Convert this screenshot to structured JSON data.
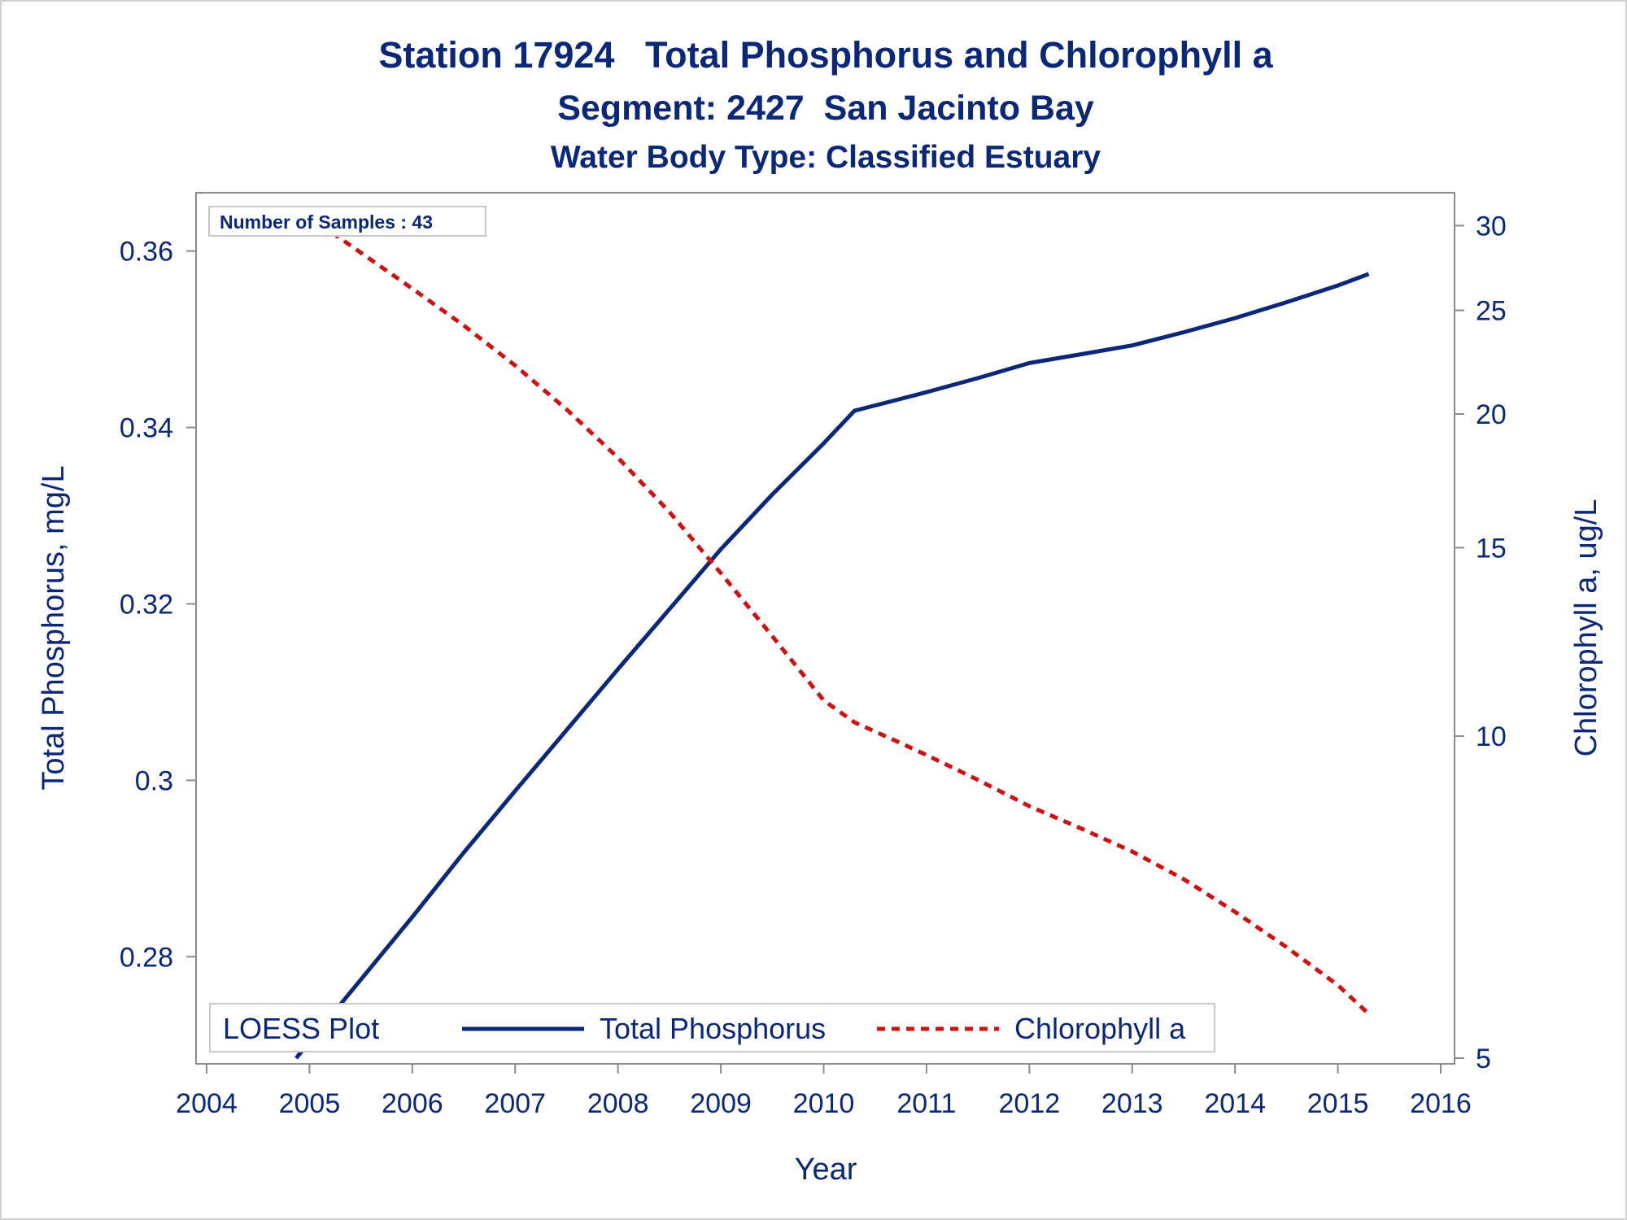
{
  "chart_data": {
    "type": "line",
    "title": "Station 17924   Total Phosphorus and Chlorophyll a",
    "subtitle": "Segment: 2427  San Jacinto Bay",
    "subtitle2": "Water Body Type: Classified Estuary",
    "xlabel": "Year",
    "ylabel_left": "Total Phosphorus, mg/L",
    "ylabel_right": "Chlorophyll a, ug/L",
    "x_ticks": [
      "2004",
      "2005",
      "2006",
      "2007",
      "2008",
      "2009",
      "2010",
      "2011",
      "2012",
      "2013",
      "2014",
      "2015",
      "2016"
    ],
    "xlim": [
      2004,
      2016
    ],
    "y_left_ticks": [
      "0.28",
      "0.3",
      "0.32",
      "0.34",
      "0.36"
    ],
    "y_left_lim": [
      0.2685,
      0.3632
    ],
    "y_right_ticks": [
      "5",
      "10",
      "15",
      "20",
      "25",
      "30"
    ],
    "y_right_scale": "log",
    "y_right_lim": [
      5.0,
      31.2
    ],
    "annotation": "Number of Samples : 43",
    "legend_title": "LOESS Plot",
    "legend_position": "bottom-inside",
    "grid": false,
    "series": [
      {
        "name": "Total Phosphorus",
        "axis": "left",
        "style": "solid",
        "color": "#0b2878",
        "x": [
          2004.87,
          2005.4,
          2006.0,
          2006.5,
          2007.0,
          2007.5,
          2008.0,
          2008.5,
          2009.0,
          2009.5,
          2010.0,
          2010.3,
          2010.7,
          2011.0,
          2011.5,
          2012.0,
          2012.5,
          2013.0,
          2013.5,
          2014.0,
          2014.5,
          2015.0,
          2015.3
        ],
        "y": [
          0.2685,
          0.276,
          0.2845,
          0.2918,
          0.2988,
          0.3057,
          0.3126,
          0.3194,
          0.3262,
          0.3324,
          0.3382,
          0.3419,
          0.3431,
          0.344,
          0.3456,
          0.3473,
          0.3483,
          0.3493,
          0.3508,
          0.3524,
          0.3542,
          0.3561,
          0.3574
        ]
      },
      {
        "name": "Chlorophyll a",
        "axis": "right",
        "style": "dashed",
        "color": "#cc1212",
        "x": [
          2004.87,
          2005.5,
          2006.0,
          2006.5,
          2007.0,
          2007.5,
          2008.0,
          2008.5,
          2009.0,
          2009.5,
          2010.0,
          2010.3,
          2010.7,
          2011.0,
          2011.5,
          2012.0,
          2012.5,
          2013.0,
          2013.5,
          2014.0,
          2014.5,
          2015.0,
          2015.3
        ],
        "y": [
          31.2,
          28.3,
          26.2,
          24.2,
          22.2,
          20.2,
          18.2,
          16.2,
          14.2,
          12.4,
          10.8,
          10.3,
          9.9,
          9.6,
          9.1,
          8.6,
          8.2,
          7.8,
          7.35,
          6.85,
          6.35,
          5.85,
          5.5
        ]
      }
    ]
  }
}
